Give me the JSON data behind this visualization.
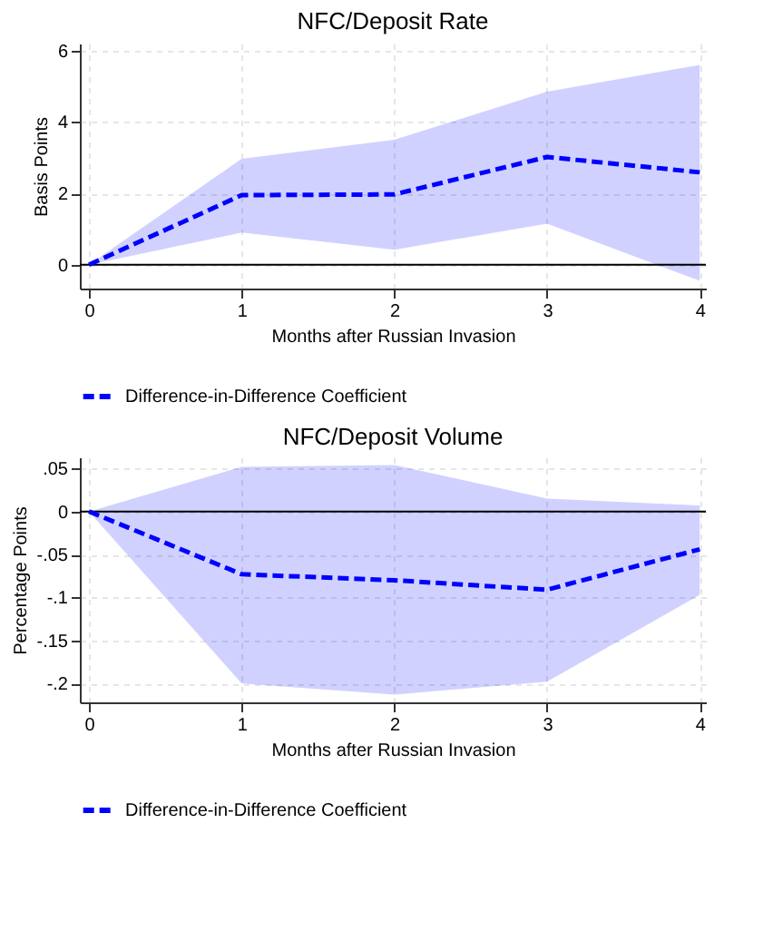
{
  "chart_data": [
    {
      "type": "line",
      "title": "NFC/Deposit Rate",
      "xlabel": "Months after Russian Invasion",
      "ylabel": "Basis Points",
      "x": [
        0,
        1,
        2,
        3,
        4
      ],
      "series": [
        {
          "name": "Difference-in-Difference Coefficient",
          "color": "#0000ff",
          "line_style": "dashed",
          "values": [
            0,
            1.95,
            1.97,
            3.02,
            2.59
          ],
          "lower": [
            0,
            0.9,
            0.42,
            1.15,
            -0.45
          ],
          "upper": [
            0,
            2.97,
            3.5,
            4.85,
            5.6
          ]
        }
      ],
      "ref_lines": [
        {
          "axis": "y",
          "value": 0,
          "color": "#000000"
        }
      ],
      "xlim": [
        -0.06,
        4.04
      ],
      "ylim": [
        -0.67,
        6.2
      ],
      "xticks": [
        0,
        1,
        2,
        3,
        4
      ],
      "yticks": [
        0,
        2,
        4,
        6
      ],
      "grid": true,
      "legend": "bottom"
    },
    {
      "type": "line",
      "title": "NFC/Deposit Volume",
      "xlabel": "Months after Russian Invasion",
      "ylabel": "Percentage Points",
      "x": [
        0,
        1,
        2,
        3,
        4
      ],
      "series": [
        {
          "name": "Difference-in-Difference Coefficient",
          "color": "#0000ff",
          "line_style": "dashed",
          "values": [
            0,
            -0.073,
            -0.08,
            -0.091,
            -0.044
          ],
          "lower": [
            0,
            -0.2,
            -0.213,
            -0.198,
            -0.097
          ],
          "upper": [
            0,
            0.052,
            0.054,
            0.015,
            0.007
          ]
        }
      ],
      "ref_lines": [
        {
          "axis": "y",
          "value": 0,
          "color": "#000000"
        }
      ],
      "xlim": [
        -0.06,
        4.04
      ],
      "ylim": [
        -0.222,
        0.063
      ],
      "xticks": [
        0,
        1,
        2,
        3,
        4
      ],
      "yticks": [
        {
          "value": -0.2,
          "label": "-.2"
        },
        {
          "value": -0.15,
          "label": "-.15"
        },
        {
          "value": -0.1,
          "label": "-.1"
        },
        {
          "value": -0.05,
          "label": "-.05"
        },
        0,
        {
          "value": 0.05,
          "label": ".05"
        }
      ],
      "grid": true,
      "legend": "bottom"
    }
  ]
}
